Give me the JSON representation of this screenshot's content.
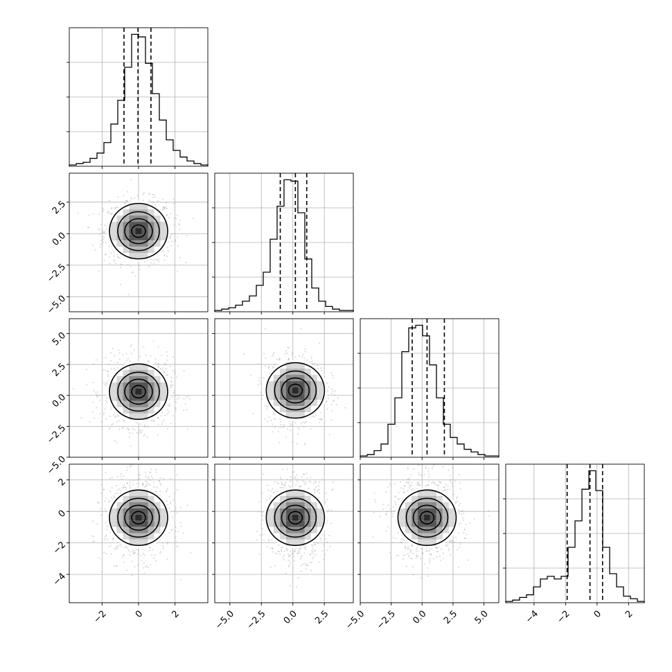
{
  "chart_data": {
    "type": "corner",
    "grid": true,
    "parameters": [
      {
        "index": 0,
        "range": [
          -3.8,
          3.8
        ],
        "ticks": [
          -2,
          0,
          2
        ],
        "tick_labels": [
          "−2",
          "0",
          "2"
        ]
      },
      {
        "index": 1,
        "range": [
          -6.2,
          4.8
        ],
        "ticks": [
          -5.0,
          -2.5,
          0.0,
          2.5
        ],
        "tick_labels": [
          "−5.0",
          "−2.5",
          "0.0",
          "2.5"
        ]
      },
      {
        "index": 2,
        "range": [
          -5.0,
          6.2
        ],
        "ticks": [
          -5.0,
          -2.5,
          0.0,
          2.5,
          5.0
        ],
        "tick_labels": [
          "−5.0",
          "−2.5",
          "0.0",
          "2.5",
          "5.0"
        ]
      },
      {
        "index": 3,
        "range": [
          -5.8,
          3.0
        ],
        "ticks": [
          -4,
          -2,
          0,
          2
        ],
        "tick_labels": [
          "−4",
          "−2",
          "0",
          "2"
        ]
      }
    ],
    "histograms": [
      {
        "param": 0,
        "bins": [
          -3.8,
          3.8
        ],
        "counts": [
          1,
          2,
          3,
          6,
          10,
          18,
          32,
          50,
          75,
          100,
          98,
          78,
          55,
          35,
          20,
          12,
          7,
          4,
          2,
          1
        ],
        "quantiles": [
          -0.8,
          -0.03,
          0.68
        ],
        "ymax": 105
      },
      {
        "param": 1,
        "bins": [
          -6.2,
          4.8
        ],
        "counts": [
          1,
          2,
          3,
          5,
          8,
          12,
          20,
          30,
          55,
          80,
          100,
          99,
          75,
          40,
          18,
          8,
          4,
          2,
          1,
          1
        ],
        "quantiles": [
          -1.0,
          0.2,
          1.1
        ],
        "ymax": 105
      },
      {
        "param": 2,
        "bins": [
          -5.0,
          6.2
        ],
        "counts": [
          1,
          2,
          5,
          10,
          25,
          45,
          80,
          98,
          100,
          92,
          70,
          45,
          25,
          15,
          10,
          6,
          4,
          2,
          1,
          1
        ],
        "quantiles": [
          -0.8,
          0.4,
          1.8
        ],
        "ymax": 105
      },
      {
        "param": 3,
        "bins": [
          -5.8,
          3.0
        ],
        "counts": [
          1,
          2,
          4,
          6,
          12,
          18,
          20,
          18,
          20,
          42,
          62,
          86,
          100,
          85,
          42,
          22,
          12,
          5,
          3,
          1
        ],
        "quantiles": [
          -1.9,
          -0.45,
          0.35
        ],
        "ymax": 105
      }
    ],
    "scatter_2d": [
      {
        "x_param": 0,
        "y_param": 1,
        "center": [
          0.0,
          0.2
        ],
        "spread": [
          0.95,
          1.25
        ]
      },
      {
        "x_param": 0,
        "y_param": 2,
        "center": [
          0.0,
          0.3
        ],
        "spread": [
          0.95,
          1.4
        ]
      },
      {
        "x_param": 1,
        "y_param": 2,
        "center": [
          0.2,
          0.4
        ],
        "spread": [
          1.2,
          1.4
        ]
      },
      {
        "x_param": 0,
        "y_param": 3,
        "center": [
          0.0,
          -0.4
        ],
        "spread": [
          0.9,
          1.3
        ]
      },
      {
        "x_param": 1,
        "y_param": 3,
        "center": [
          0.2,
          -0.4
        ],
        "spread": [
          1.2,
          1.3
        ]
      },
      {
        "x_param": 2,
        "y_param": 3,
        "center": [
          0.4,
          -0.4
        ],
        "spread": [
          1.4,
          1.3
        ]
      }
    ]
  }
}
